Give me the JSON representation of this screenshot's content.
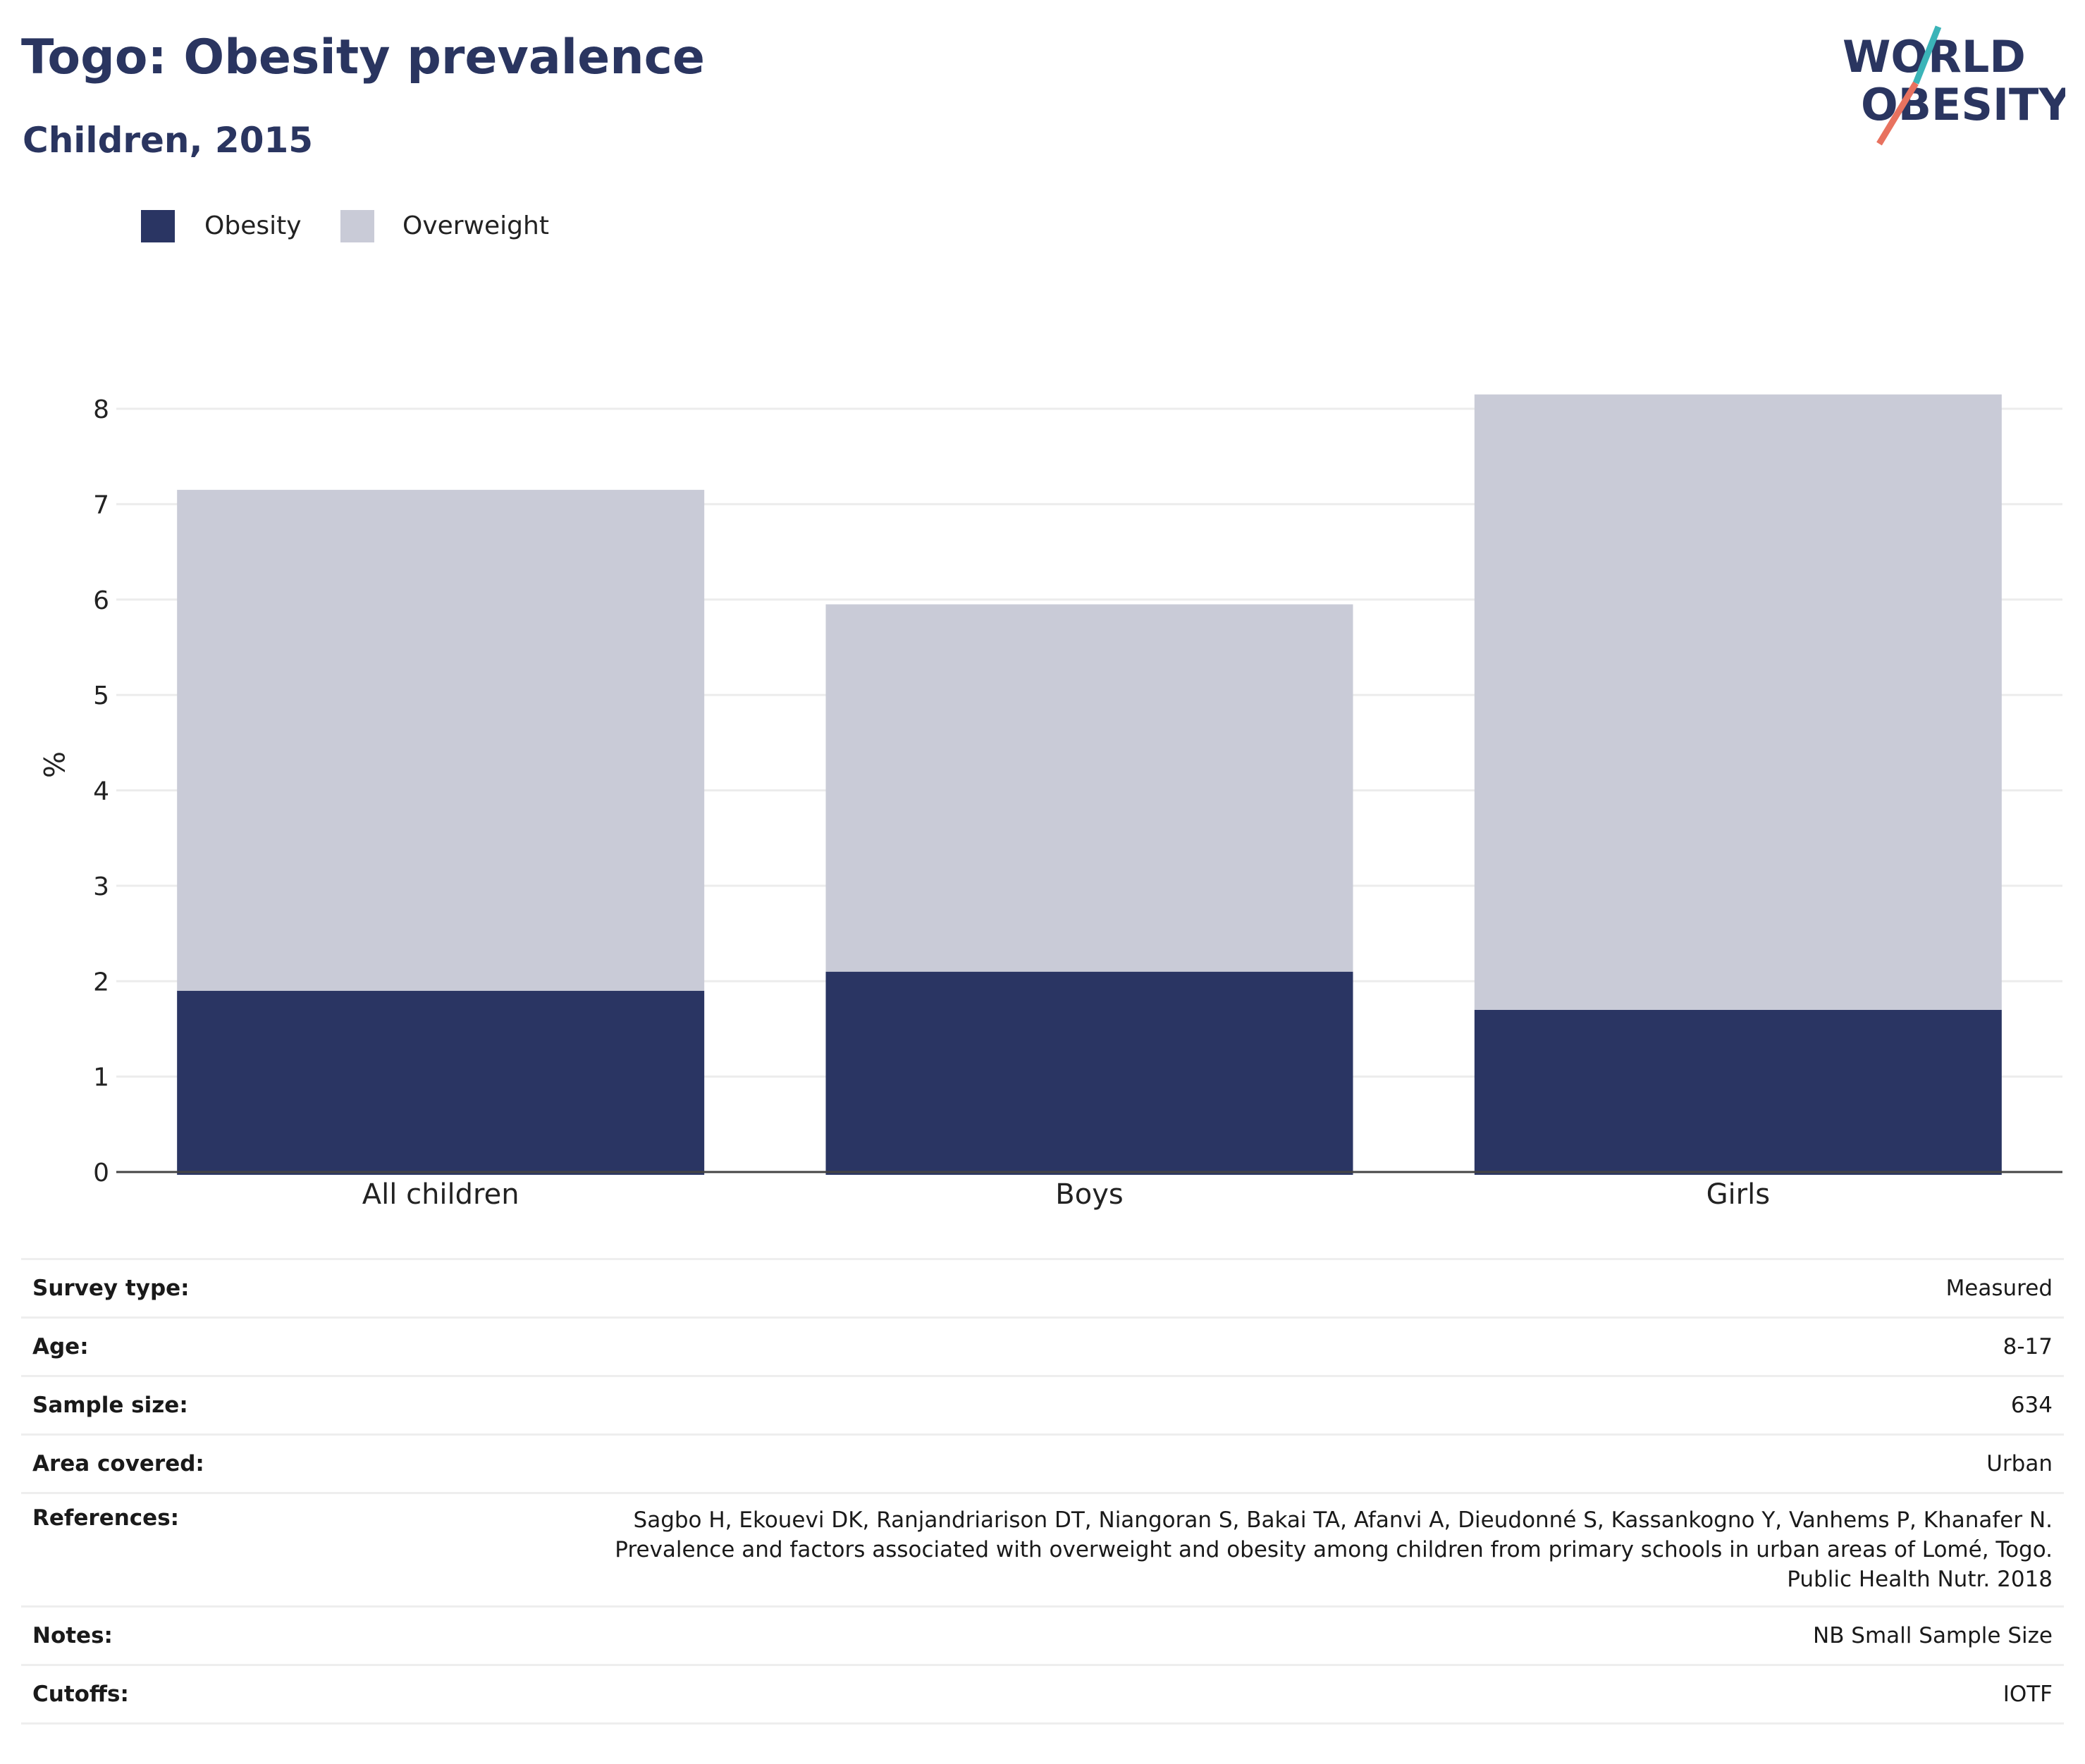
{
  "header": {
    "title": "Togo: Obesity prevalence",
    "subtitle": "Children, 2015"
  },
  "logo": {
    "line1": "WORLD",
    "line2": "OBESITY"
  },
  "colors": {
    "obesity": "#2a3563",
    "overweight": "#c9cbd7",
    "title": "#2a3560",
    "logo_teal": "#3bb4b8",
    "logo_coral": "#e8725f"
  },
  "legend": [
    {
      "label": "Obesity",
      "color": "#2a3563"
    },
    {
      "label": "Overweight",
      "color": "#c9cbd7"
    }
  ],
  "chart_data": {
    "type": "bar",
    "stacked": true,
    "categories": [
      "All children",
      "Boys",
      "Girls"
    ],
    "series": [
      {
        "name": "Obesity",
        "values": [
          1.9,
          2.1,
          1.7
        ],
        "color": "#2a3563"
      },
      {
        "name": "Overweight",
        "values": [
          5.25,
          3.85,
          6.45
        ],
        "color": "#c9cbd7"
      }
    ],
    "ylabel": "%",
    "xlabel": "",
    "ylim": [
      0,
      8.6
    ],
    "yticks": [
      0,
      1,
      2,
      3,
      4,
      5,
      6,
      7,
      8
    ],
    "grid": true,
    "legend_position": "top-left"
  },
  "details": [
    {
      "label": "Survey type:",
      "value": [
        "Measured"
      ]
    },
    {
      "label": "Age:",
      "value": [
        "8-17"
      ]
    },
    {
      "label": "Sample size:",
      "value": [
        "634"
      ]
    },
    {
      "label": "Area covered:",
      "value": [
        "Urban"
      ]
    },
    {
      "label": "References:",
      "value": [
        "Sagbo H, Ekouevi DK, Ranjandriarison DT, Niangoran S, Bakai TA, Afanvi A, Dieudonné S, Kassankogno Y, Vanhems P, Khanafer N.",
        "Prevalence and factors associated with overweight and obesity among children from primary schools in urban areas of Lomé, Togo.",
        "Public Health Nutr. 2018"
      ]
    },
    {
      "label": "Notes:",
      "value": [
        "NB Small Sample Size"
      ]
    },
    {
      "label": "Cutoffs:",
      "value": [
        "IOTF"
      ]
    }
  ]
}
